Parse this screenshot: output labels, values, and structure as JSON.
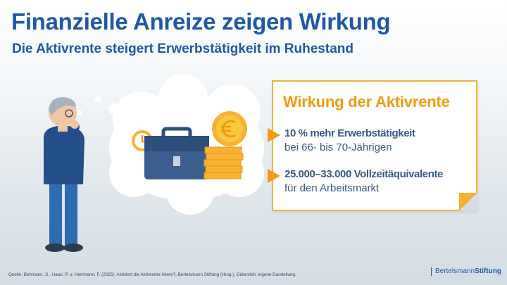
{
  "header": {
    "title": "Finanzielle Anreize zeigen Wirkung",
    "subtitle": "Die Aktivrente steigert Erwerbstätigkeit im Ruhestand"
  },
  "card": {
    "title": "Wirkung der Aktivrente",
    "points": [
      {
        "bold": "10 % mehr Erwerbstätigkeit",
        "text": "bei 66- bis 70-Jährigen"
      },
      {
        "bold": "25.000–33.000 Vollzeitäquivalente",
        "text": "für den Arbeitsmarkt"
      }
    ]
  },
  "illustration": {
    "icons": [
      "thinking-person",
      "thought-cloud",
      "clock-icon",
      "briefcase-icon",
      "euro-coin-stack-icon"
    ]
  },
  "footer": {
    "source": "Quelle: Bohmann, S., Haan, P. u. Herrmann, F. (2025): Aktiviert die Aktivrente Ältere?, Bertelsmann Stiftung (Hrsg.), Gütersloh; eigene Darstellung.",
    "logo_part1": "Bertelsmann",
    "logo_part2": "Stiftung"
  },
  "colors": {
    "title": "#1f58a8",
    "accent": "#f39a12",
    "text": "#3a5a85"
  }
}
